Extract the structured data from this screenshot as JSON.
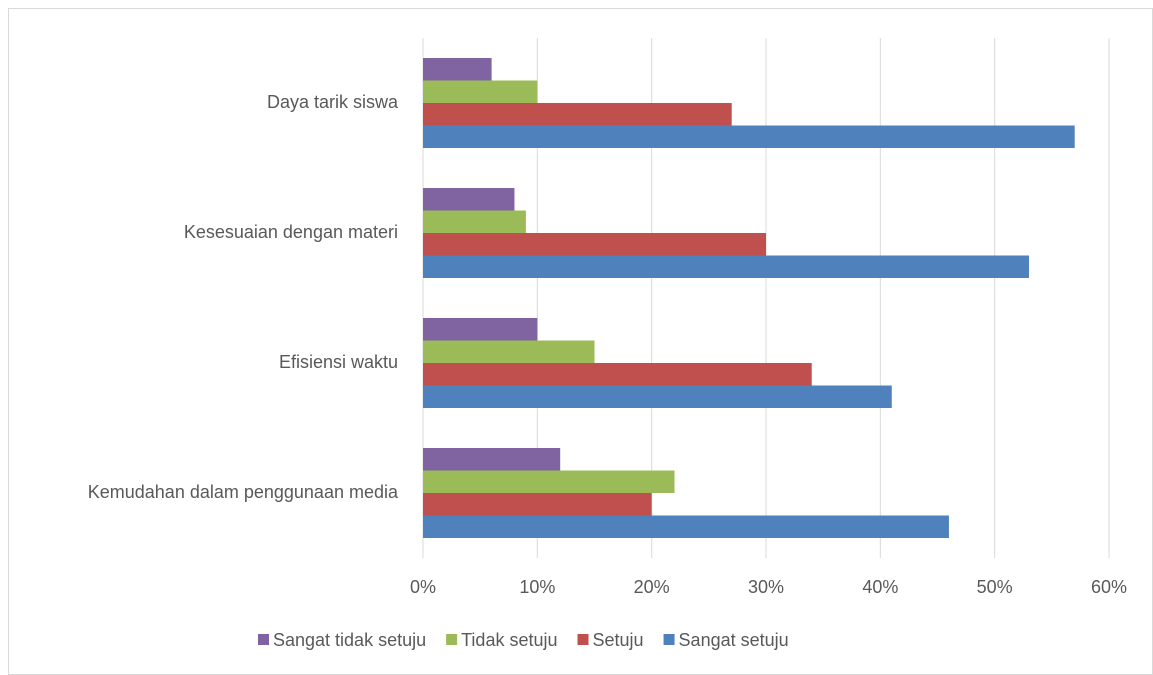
{
  "chart_data": {
    "type": "bar",
    "orientation": "horizontal",
    "categories": [
      "Kemudahan dalam penggunaan media",
      "Efisiensi waktu",
      "Kesesuaian dengan materi",
      "Daya tarik siswa"
    ],
    "series": [
      {
        "name": "Sangat tidak setuju",
        "color": "#8064a2",
        "values": [
          12,
          10,
          8,
          6
        ]
      },
      {
        "name": "Tidak setuju",
        "color": "#9bbb59",
        "values": [
          22,
          15,
          9,
          10
        ]
      },
      {
        "name": "Setuju",
        "color": "#c0504d",
        "values": [
          20,
          34,
          30,
          27
        ]
      },
      {
        "name": "Sangat setuju",
        "color": "#4f81bd",
        "values": [
          46,
          41,
          53,
          57
        ]
      }
    ],
    "xlim": [
      0,
      60
    ],
    "xticks": [
      {
        "value": 0,
        "label": "0%"
      },
      {
        "value": 10,
        "label": "10%"
      },
      {
        "value": 20,
        "label": "20%"
      },
      {
        "value": 30,
        "label": "30%"
      },
      {
        "value": 40,
        "label": "40%"
      },
      {
        "value": 50,
        "label": "50%"
      },
      {
        "value": 60,
        "label": "60%"
      }
    ],
    "grid": true,
    "legend": "bottom"
  }
}
